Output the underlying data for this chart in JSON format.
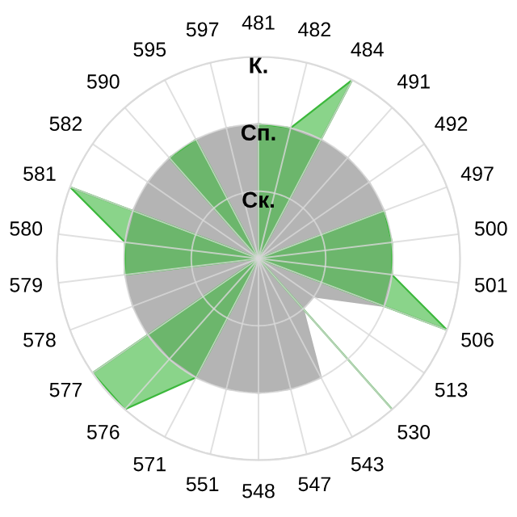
{
  "chart_data": {
    "type": "radar",
    "categories": [
      "481",
      "482",
      "484",
      "491",
      "492",
      "497",
      "500",
      "501",
      "506",
      "513",
      "530",
      "543",
      "547",
      "548",
      "551",
      "571",
      "576",
      "577",
      "578",
      "579",
      "580",
      "581",
      "582",
      "590",
      "595",
      "597"
    ],
    "series": [
      {
        "color": "#b4b4b4",
        "values": [
          2,
          2,
          2,
          2,
          2,
          2,
          2,
          2,
          2,
          1,
          1,
          2,
          2,
          2,
          2,
          2,
          2,
          2,
          2,
          2,
          2,
          2,
          2,
          2,
          2,
          2
        ]
      },
      {
        "color": "#3cb83c",
        "values": [
          2,
          2,
          3,
          0,
          0,
          2,
          2,
          2,
          3,
          0,
          3,
          0,
          0,
          0,
          0,
          2,
          3,
          3,
          0,
          2,
          2,
          3,
          0,
          2,
          2,
          0
        ]
      }
    ],
    "ylim": [
      0,
      3
    ],
    "yticks": [
      {
        "value": 1,
        "label": "Ск."
      },
      {
        "value": 2,
        "label": "Сп."
      },
      {
        "value": 3,
        "label": "К."
      }
    ],
    "grid": true,
    "legend": false
  }
}
